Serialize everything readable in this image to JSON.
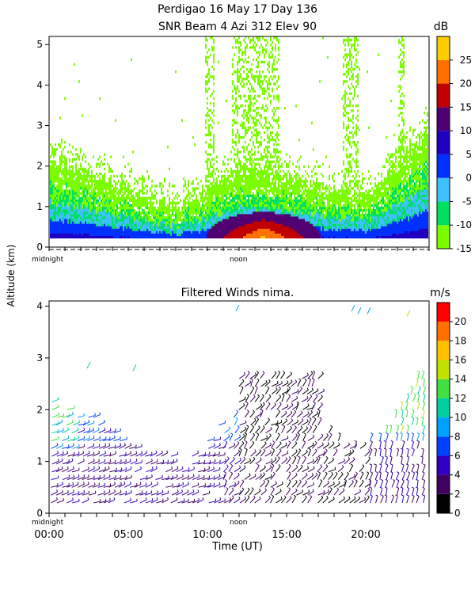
{
  "figure": {
    "title_line1": "Perdigao  16 May 17 Day 136",
    "title_line2": "SNR Beam 4 Azi 312 Elev 90",
    "shared_ylabel": "Altitude (km)"
  },
  "chart_data": [
    {
      "type": "heatmap",
      "title": "",
      "xlabel": "",
      "ylabel": "",
      "xlim": [
        0,
        24
      ],
      "ylim": [
        0,
        5.2
      ],
      "y_ticks": [
        "0",
        "1",
        "2",
        "3",
        "4",
        "5"
      ],
      "x_time_markers": [
        "midnight",
        "noon"
      ],
      "colorbar": {
        "unit": "dB",
        "range": [
          -15,
          30
        ],
        "ticks": [
          "25",
          "20",
          "15",
          "10",
          "5",
          "0",
          "-5",
          "-10",
          "-15"
        ],
        "colors": [
          "#7cfc00",
          "#00e060",
          "#40c0ff",
          "#0030ff",
          "#2000c0",
          "#500070",
          "#c00000",
          "#ff7000",
          "#ffcc00"
        ]
      },
      "profile": [
        {
          "t": 0,
          "top": 2.2
        },
        {
          "t": 2,
          "top": 1.9
        },
        {
          "t": 4,
          "top": 1.6
        },
        {
          "t": 6,
          "top": 1.2
        },
        {
          "t": 8,
          "top": 1.0
        },
        {
          "t": 10,
          "top": 1.4
        },
        {
          "t": 12,
          "top": 1.9
        },
        {
          "t": 14,
          "top": 1.8
        },
        {
          "t": 16,
          "top": 1.6
        },
        {
          "t": 18,
          "top": 1.4
        },
        {
          "t": 20,
          "top": 1.2
        },
        {
          "t": 22,
          "top": 2.0
        },
        {
          "t": 24,
          "top": 2.9
        }
      ]
    },
    {
      "type": "scatter",
      "title": "Filtered Winds nima.",
      "xlabel": "Time (UT)",
      "ylabel": "",
      "xlim": [
        0,
        24
      ],
      "ylim": [
        0,
        4.1
      ],
      "x_ticks": [
        "00:00",
        "05:00",
        "10:00",
        "15:00",
        "20:00"
      ],
      "x_time_markers": [
        "midnight",
        "noon"
      ],
      "y_ticks": [
        "0",
        "1",
        "2",
        "3",
        "4"
      ],
      "colorbar": {
        "unit": "m/s",
        "range": [
          0,
          22
        ],
        "ticks": [
          "20",
          "18",
          "16",
          "14",
          "12",
          "10",
          "8",
          "6",
          "4",
          "2",
          "0"
        ],
        "colors": [
          "#000000",
          "#400060",
          "#3000c0",
          "#0040ff",
          "#00a0ff",
          "#00d0a0",
          "#40e040",
          "#c0e000",
          "#ffc000",
          "#ff7000",
          "#ff0000"
        ]
      }
    }
  ]
}
